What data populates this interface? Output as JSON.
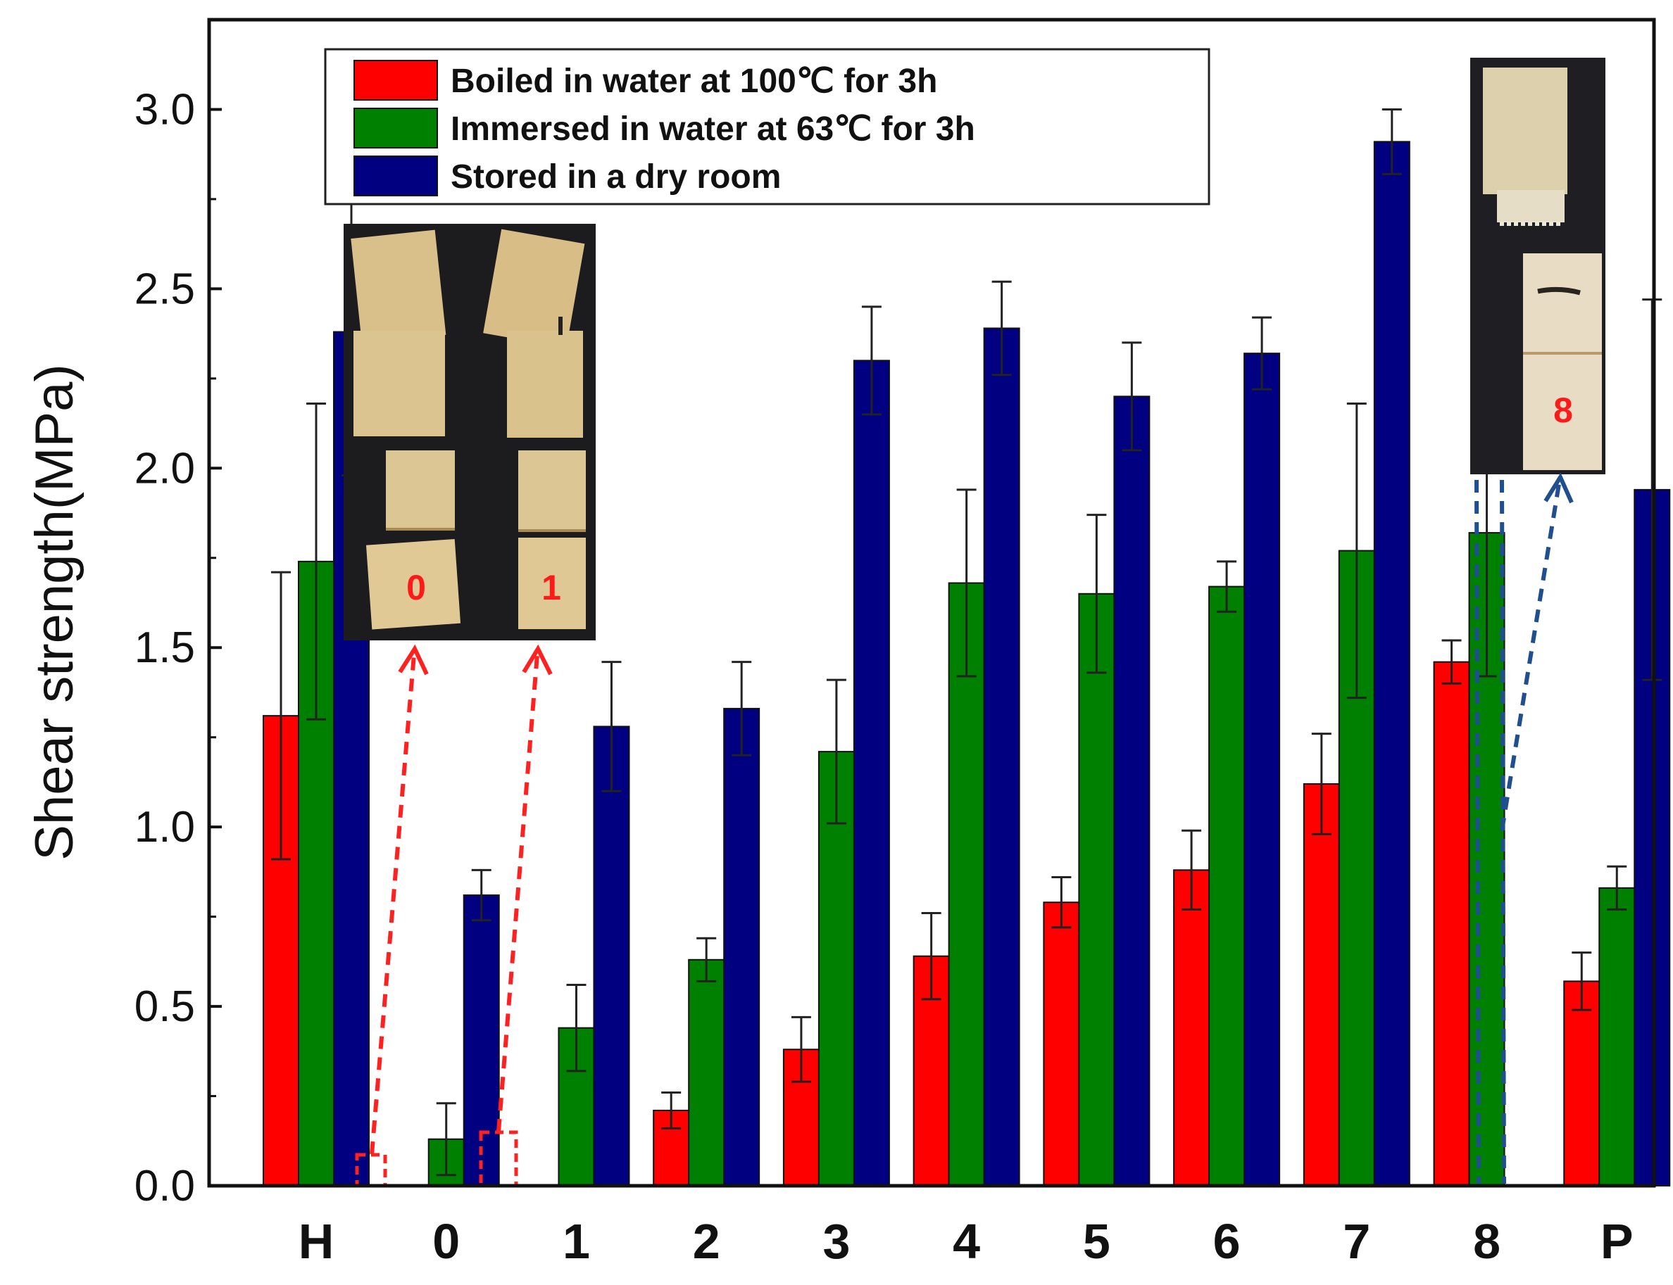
{
  "chart_data": {
    "type": "bar",
    "title": "",
    "xlabel": "",
    "ylabel": "Shear strength(MPa)",
    "ylim": [
      0,
      3.25
    ],
    "yticks": [
      "0.0",
      "0.5",
      "1.0",
      "1.5",
      "2.0",
      "2.5",
      "3.0"
    ],
    "categories": [
      "H",
      "0",
      "1",
      "2",
      "3",
      "4",
      "5",
      "6",
      "7",
      "8",
      "P"
    ],
    "legend_position": "top-left",
    "grid": false,
    "series": [
      {
        "name": "Boiled in water at 100℃ for 3h",
        "color": "#ff0000",
        "values": [
          1.31,
          0.0,
          0.0,
          0.21,
          0.38,
          0.64,
          0.79,
          0.88,
          1.12,
          1.46,
          0.57
        ],
        "errors": [
          0.4,
          0.0,
          0.0,
          0.05,
          0.09,
          0.12,
          0.07,
          0.11,
          0.14,
          0.06,
          0.08
        ]
      },
      {
        "name": "Immersed in water at 63℃ for 3h",
        "color": "#008000",
        "values": [
          1.74,
          0.13,
          0.44,
          0.63,
          1.21,
          1.68,
          1.65,
          1.67,
          1.77,
          1.82,
          0.83
        ],
        "errors": [
          0.44,
          0.1,
          0.12,
          0.06,
          0.2,
          0.26,
          0.22,
          0.07,
          0.41,
          0.4,
          0.06
        ]
      },
      {
        "name": "Stored in a dry room",
        "color": "#000080",
        "values": [
          2.38,
          0.81,
          1.28,
          1.33,
          2.3,
          2.39,
          2.2,
          2.32,
          2.91,
          0.0,
          1.94
        ],
        "errors": [
          0.4,
          0.07,
          0.18,
          0.13,
          0.15,
          0.13,
          0.15,
          0.1,
          0.09,
          0.0,
          0.53
        ]
      }
    ],
    "annotations": {
      "photo_left_labels": [
        "0",
        "1"
      ],
      "photo_right_labels": [
        "8"
      ],
      "red_arrow_color": "#ff2020",
      "blue_arrow_color": "#1f4f8f"
    }
  }
}
